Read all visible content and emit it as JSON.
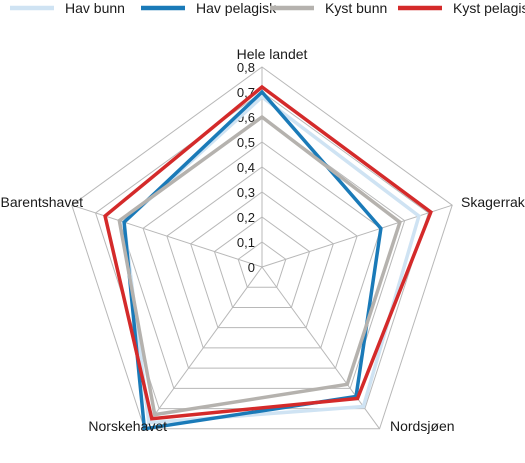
{
  "chart_data": {
    "type": "radar",
    "categories": [
      "Hele landet",
      "Skagerrak",
      "Nordsjøen",
      "Norskehavet",
      "Barentshavet"
    ],
    "series": [
      {
        "name": "Hav bunn",
        "color": "#cfe3f3",
        "values": [
          0.68,
          0.66,
          0.69,
          0.77,
          0.58
        ]
      },
      {
        "name": "Hav pelagisk",
        "color": "#1a7ab8",
        "values": [
          0.7,
          0.5,
          0.64,
          0.8,
          0.58
        ]
      },
      {
        "name": "Kyst bunn",
        "color": "#b5b2ae",
        "values": [
          0.6,
          0.58,
          0.58,
          0.73,
          0.6
        ]
      },
      {
        "name": "Kyst pelagisk",
        "color": "#d42a2a",
        "values": [
          0.72,
          0.71,
          0.65,
          0.75,
          0.66
        ]
      }
    ],
    "rticks": [
      "0",
      "0,1",
      "0,2",
      "0,3",
      "0,4",
      "0,5",
      "0,6",
      "0,7",
      "0,8"
    ],
    "rlim": [
      0,
      0.8
    ],
    "legend_position": "top",
    "grid": true
  },
  "colors": {
    "grid": "#b8b8b8",
    "text": "#1a1a1a"
  }
}
